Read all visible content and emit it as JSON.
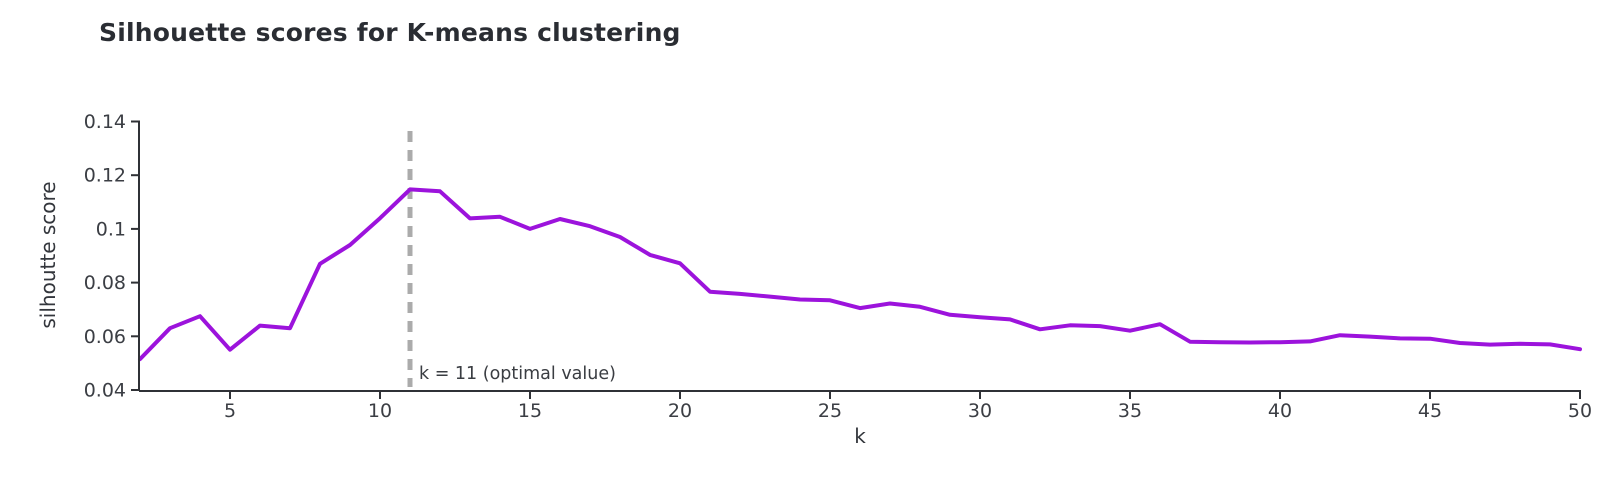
{
  "chart_data": {
    "type": "line",
    "title": "Silhouette scores for K-means clustering",
    "xlabel": "k",
    "ylabel": "silhoutte score",
    "x": [
      2,
      3,
      4,
      5,
      6,
      7,
      8,
      9,
      10,
      11,
      12,
      13,
      14,
      15,
      16,
      17,
      18,
      19,
      20,
      21,
      22,
      23,
      24,
      25,
      26,
      27,
      28,
      29,
      30,
      31,
      32,
      33,
      34,
      35,
      36,
      37,
      38,
      39,
      40,
      41,
      42,
      43,
      44,
      45,
      46,
      47,
      48,
      49,
      50
    ],
    "values": [
      0.0515,
      0.063,
      0.0675,
      0.055,
      0.064,
      0.063,
      0.087,
      0.094,
      0.104,
      0.1147,
      0.114,
      0.1039,
      0.1045,
      0.1,
      0.1037,
      0.101,
      0.097,
      0.0903,
      0.0872,
      0.0766,
      0.0758,
      0.0748,
      0.0737,
      0.0734,
      0.0705,
      0.0722,
      0.071,
      0.068,
      0.0671,
      0.0663,
      0.0626,
      0.0641,
      0.0638,
      0.0621,
      0.0645,
      0.058,
      0.0578,
      0.0577,
      0.0578,
      0.0581,
      0.0604,
      0.0599,
      0.0592,
      0.0591,
      0.0575,
      0.0569,
      0.0572,
      0.057,
      0.0552
    ],
    "xlim": [
      2,
      50
    ],
    "ylim": [
      0.04,
      0.14
    ],
    "xticks": [
      5,
      10,
      15,
      20,
      25,
      30,
      35,
      40,
      45,
      50
    ],
    "xtick_labels": [
      "5",
      "10",
      "15",
      "20",
      "25",
      "30",
      "35",
      "40",
      "45",
      "50"
    ],
    "yticks": [
      0.04,
      0.06,
      0.08,
      0.1,
      0.12,
      0.14
    ],
    "ytick_labels": [
      "0.04",
      "0.06",
      "0.08",
      "0.1",
      "0.12",
      "0.14"
    ],
    "grid": "off",
    "legend": "none",
    "line_color": "#9c13dc",
    "axis_color": "#2f3136",
    "tick_label_color": "#3b3e44",
    "annotation": {
      "text": "k = 11 (optimal value)",
      "x": 11,
      "line_color": "#ababab",
      "text_color": "#3a3d42"
    }
  }
}
